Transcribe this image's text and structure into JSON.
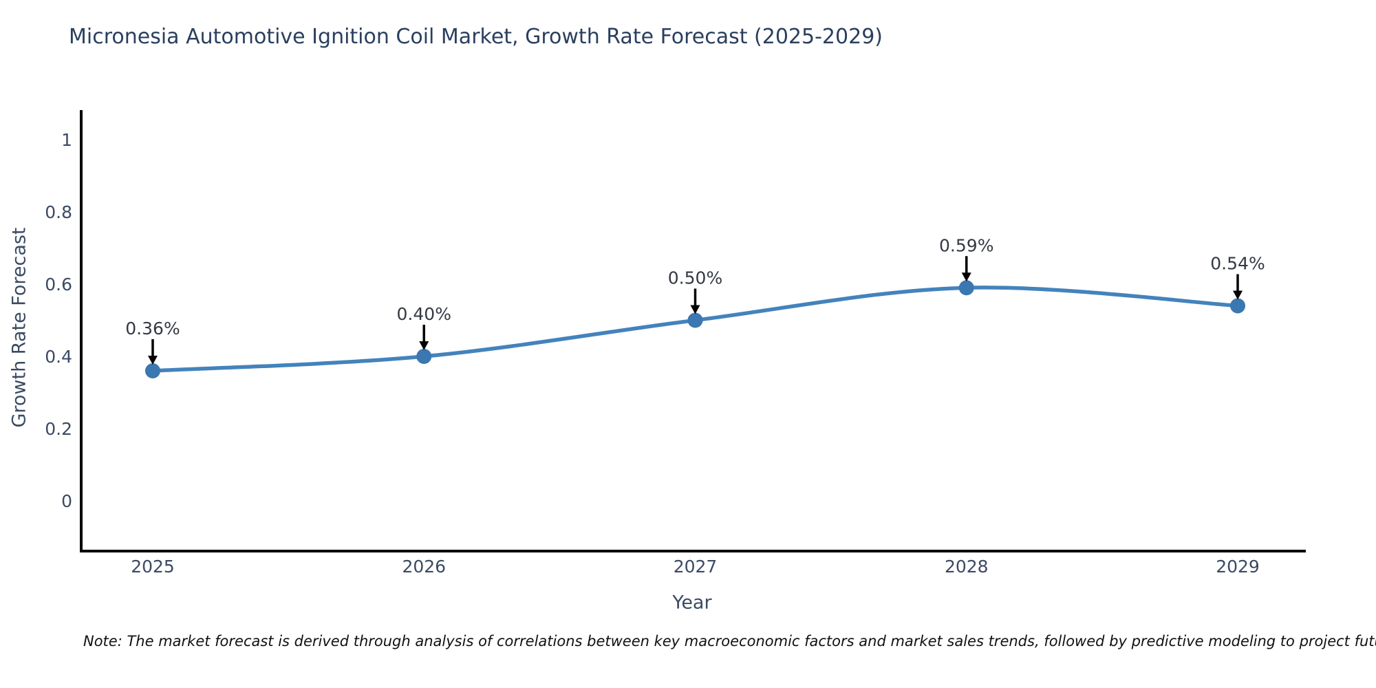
{
  "chart_data": {
    "type": "line",
    "title": "Micronesia Automotive Ignition Coil Market, Growth Rate Forecast (2025-2029)",
    "xlabel": "Year",
    "ylabel": "Growth Rate Forecast",
    "x": [
      "2025",
      "2026",
      "2027",
      "2028",
      "2029"
    ],
    "values": [
      0.36,
      0.4,
      0.5,
      0.59,
      0.54
    ],
    "point_labels": [
      "0.36%",
      "0.40%",
      "0.50%",
      "0.59%",
      "0.54%"
    ],
    "y_tick_labels": [
      "0",
      "0.2",
      "0.4",
      "0.6",
      "0.8",
      "1"
    ],
    "y_tick_values": [
      0,
      0.2,
      0.4,
      0.6,
      0.8,
      1
    ],
    "ylim": [
      -0.13,
      1.08
    ],
    "grid": false,
    "legend": "none",
    "line_color": "#4383bc",
    "marker_color": "#3b77b0",
    "axis_color": "#000000",
    "tick_label_color": "#3b4a63",
    "annotation_color": "#333943",
    "title_color": "#2a3f5f",
    "note": "Note: The market forecast is derived through analysis of correlations between key macroeconomic factors and market sales trends, followed by predictive modeling to project future sales"
  }
}
